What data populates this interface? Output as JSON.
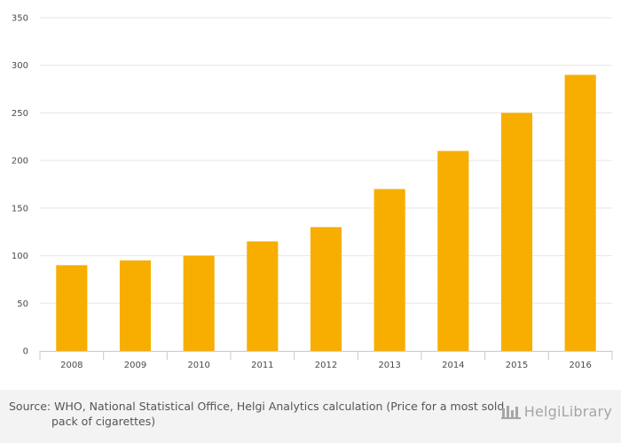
{
  "chart_data": {
    "type": "bar",
    "title": "",
    "xlabel": "",
    "ylabel": "",
    "categories": [
      "2008",
      "2009",
      "2010",
      "2011",
      "2012",
      "2013",
      "2014",
      "2015",
      "2016"
    ],
    "values": [
      90,
      95,
      100,
      115,
      130,
      170,
      210,
      250,
      290
    ],
    "ylim": [
      0,
      350
    ],
    "yticks": [
      0,
      50,
      100,
      150,
      200,
      250,
      300,
      350
    ],
    "grid": true,
    "legend": "none",
    "bar_color": "#f7ae00"
  },
  "footer": {
    "source": "Source: WHO, National Statistical Office, Helgi Analytics calculation (Price for a most sold pack of cigarettes)",
    "logo_text": "HelgiLibrary",
    "logo_icon": "helgi-library-logo-icon"
  },
  "colors": {
    "bar": "#f7ae00",
    "grid": "#e6e6e6",
    "footer_bg": "#f3f3f3"
  }
}
